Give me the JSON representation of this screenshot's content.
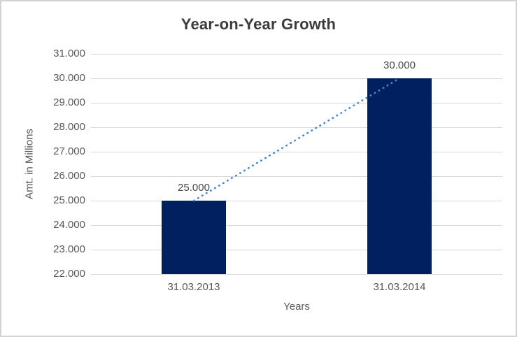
{
  "chart_data": {
    "type": "bar",
    "title": "Year-on-Year Growth",
    "xlabel": "Years",
    "ylabel": "Amt. in Millions",
    "categories": [
      "31.03.2013",
      "31.03.2014"
    ],
    "values": [
      25000,
      30000
    ],
    "value_labels": [
      "25.000",
      "30.000"
    ],
    "ylim": [
      22000,
      31000
    ],
    "ytick_step": 1000,
    "ytick_labels": [
      "22.000",
      "23.000",
      "24.000",
      "25.000",
      "26.000",
      "27.000",
      "28.000",
      "29.000",
      "30.000",
      "31.000"
    ],
    "grid": true,
    "legend_position": "none",
    "trendline": {
      "type": "linear",
      "line_style": "dotted",
      "connects": [
        25000,
        30000
      ]
    }
  },
  "colors": {
    "bar": "#002060",
    "trendline": "#4a82c8",
    "gridline": "#d9d9d9",
    "tick_text": "#595959",
    "title_text": "#3b3b3b",
    "frame_border": "#d3d3d3",
    "background": "#ffffff"
  }
}
